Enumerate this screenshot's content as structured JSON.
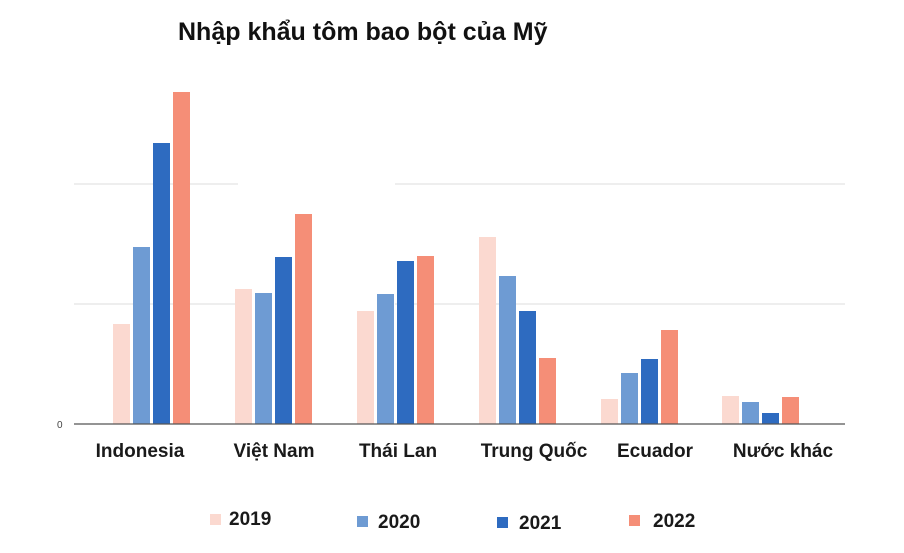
{
  "chart_data": {
    "type": "bar",
    "title": "Nhập khẩu tôm bao bột của Mỹ",
    "xlabel": "",
    "ylabel": "",
    "categories": [
      "Indonesia",
      "Việt Nam",
      "Thái Lan",
      "Trung Quốc",
      "Ecuador",
      "Nước khác"
    ],
    "series": [
      {
        "name": "2019",
        "color": "#fbd9d0",
        "values": [
          100,
          135,
          113,
          187,
          25,
          28
        ]
      },
      {
        "name": "2020",
        "color": "#6e9bd3",
        "values": [
          177,
          131,
          130,
          148,
          51,
          22
        ]
      },
      {
        "name": "2021",
        "color": "#2e6bc0",
        "values": [
          281,
          167,
          163,
          113,
          65,
          11
        ]
      },
      {
        "name": "2022",
        "color": "#f58e77",
        "values": [
          332,
          210,
          168,
          66,
          94,
          27
        ]
      }
    ],
    "ylim": [
      0,
      360
    ],
    "y_tick_labels": [
      {
        "value": 0,
        "label": "0"
      }
    ],
    "grid": true,
    "legend": "bottom"
  }
}
